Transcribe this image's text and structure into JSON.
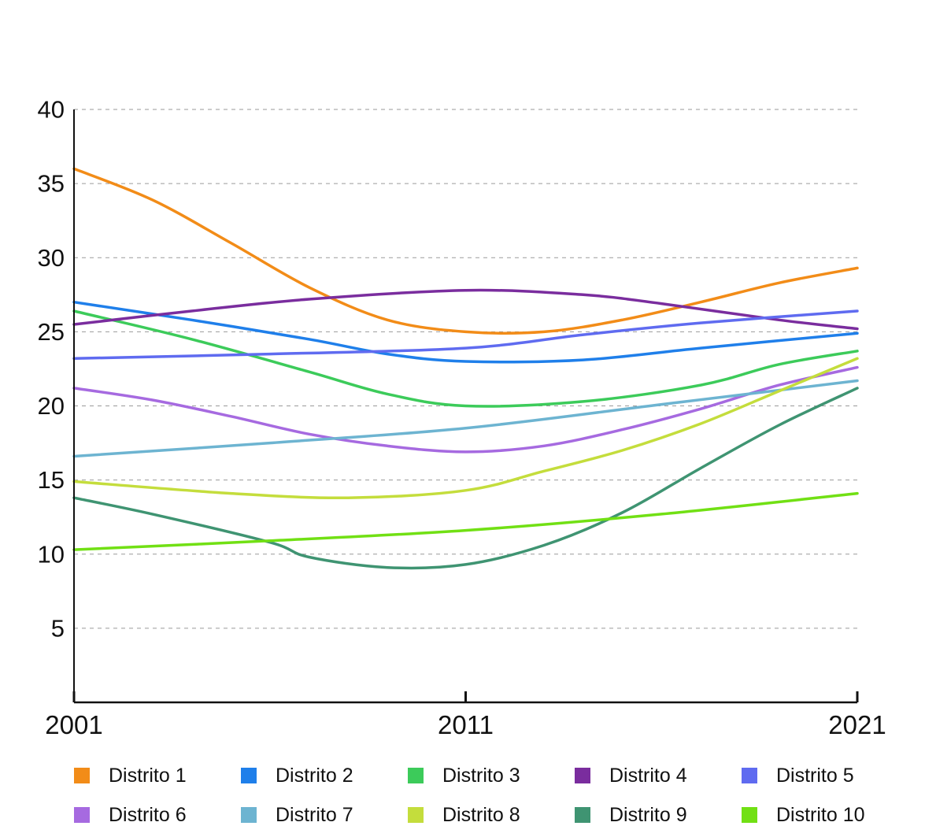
{
  "chart_data": {
    "type": "line",
    "title": "",
    "xlabel": "",
    "ylabel": "",
    "x": [
      2001,
      2011,
      2021
    ],
    "xlim": [
      2001,
      2021
    ],
    "ylim": [
      0,
      40
    ],
    "y_ticks": [
      5,
      10,
      15,
      20,
      25,
      30,
      35,
      40
    ],
    "x_tick_labels": [
      "2001",
      "2011",
      "2021"
    ],
    "grid": "horizontal-dashed",
    "legend_position": "bottom",
    "series": [
      {
        "name": "Distrito 1",
        "color": "#F28C18",
        "points": [
          [
            2001,
            36.0
          ],
          [
            2003,
            33.9
          ],
          [
            2005,
            31.0
          ],
          [
            2007,
            28.0
          ],
          [
            2009,
            25.8
          ],
          [
            2011,
            25.0
          ],
          [
            2013,
            25.0
          ],
          [
            2015,
            25.8
          ],
          [
            2017,
            27.0
          ],
          [
            2019,
            28.3
          ],
          [
            2021,
            29.3
          ]
        ]
      },
      {
        "name": "Distrito 2",
        "color": "#1F7FEA",
        "points": [
          [
            2001,
            27.0
          ],
          [
            2004,
            25.8
          ],
          [
            2007,
            24.5
          ],
          [
            2009,
            23.5
          ],
          [
            2011,
            23.0
          ],
          [
            2014,
            23.1
          ],
          [
            2017,
            23.9
          ],
          [
            2021,
            24.9
          ]
        ]
      },
      {
        "name": "Distrito 3",
        "color": "#3CCB5A",
        "points": [
          [
            2001,
            26.4
          ],
          [
            2004,
            24.5
          ],
          [
            2007,
            22.3
          ],
          [
            2009,
            20.8
          ],
          [
            2011,
            20.0
          ],
          [
            2014,
            20.3
          ],
          [
            2017,
            21.4
          ],
          [
            2019,
            22.8
          ],
          [
            2021,
            23.7
          ]
        ]
      },
      {
        "name": "Distrito 4",
        "color": "#7A2D9E",
        "points": [
          [
            2001,
            25.5
          ],
          [
            2004,
            26.4
          ],
          [
            2007,
            27.2
          ],
          [
            2011,
            27.8
          ],
          [
            2014,
            27.5
          ],
          [
            2016,
            26.9
          ],
          [
            2019,
            25.8
          ],
          [
            2021,
            25.2
          ]
        ]
      },
      {
        "name": "Distrito 5",
        "color": "#5F6BF0",
        "points": [
          [
            2001,
            23.2
          ],
          [
            2006,
            23.5
          ],
          [
            2011,
            23.9
          ],
          [
            2014,
            24.8
          ],
          [
            2017,
            25.6
          ],
          [
            2021,
            26.4
          ]
        ]
      },
      {
        "name": "Distrito 6",
        "color": "#A66AE0",
        "points": [
          [
            2001,
            21.2
          ],
          [
            2003,
            20.4
          ],
          [
            2005,
            19.3
          ],
          [
            2007,
            18.1
          ],
          [
            2009,
            17.3
          ],
          [
            2011,
            16.9
          ],
          [
            2013,
            17.3
          ],
          [
            2015,
            18.4
          ],
          [
            2017,
            19.8
          ],
          [
            2019,
            21.4
          ],
          [
            2021,
            22.6
          ]
        ]
      },
      {
        "name": "Distrito 7",
        "color": "#6DB4D1",
        "points": [
          [
            2001,
            16.6
          ],
          [
            2006,
            17.5
          ],
          [
            2011,
            18.5
          ],
          [
            2016,
            20.1
          ],
          [
            2021,
            21.7
          ]
        ]
      },
      {
        "name": "Distrito 8",
        "color": "#C4DD3C",
        "points": [
          [
            2001,
            14.9
          ],
          [
            2005,
            14.1
          ],
          [
            2008,
            13.8
          ],
          [
            2011,
            14.3
          ],
          [
            2013,
            15.6
          ],
          [
            2015,
            17.0
          ],
          [
            2017,
            18.8
          ],
          [
            2019,
            21.0
          ],
          [
            2021,
            23.2
          ]
        ]
      },
      {
        "name": "Distrito 9",
        "color": "#3F9472",
        "points": [
          [
            2001,
            13.8
          ],
          [
            2003,
            12.7
          ],
          [
            2006,
            10.8
          ],
          [
            2007,
            9.8
          ],
          [
            2009,
            9.1
          ],
          [
            2011,
            9.3
          ],
          [
            2013,
            10.6
          ],
          [
            2015,
            12.8
          ],
          [
            2017,
            15.8
          ],
          [
            2019,
            18.7
          ],
          [
            2021,
            21.2
          ]
        ]
      },
      {
        "name": "Distrito 10",
        "color": "#71E014",
        "points": [
          [
            2001,
            10.3
          ],
          [
            2006,
            10.9
          ],
          [
            2011,
            11.6
          ],
          [
            2016,
            12.7
          ],
          [
            2021,
            14.1
          ]
        ]
      }
    ]
  }
}
